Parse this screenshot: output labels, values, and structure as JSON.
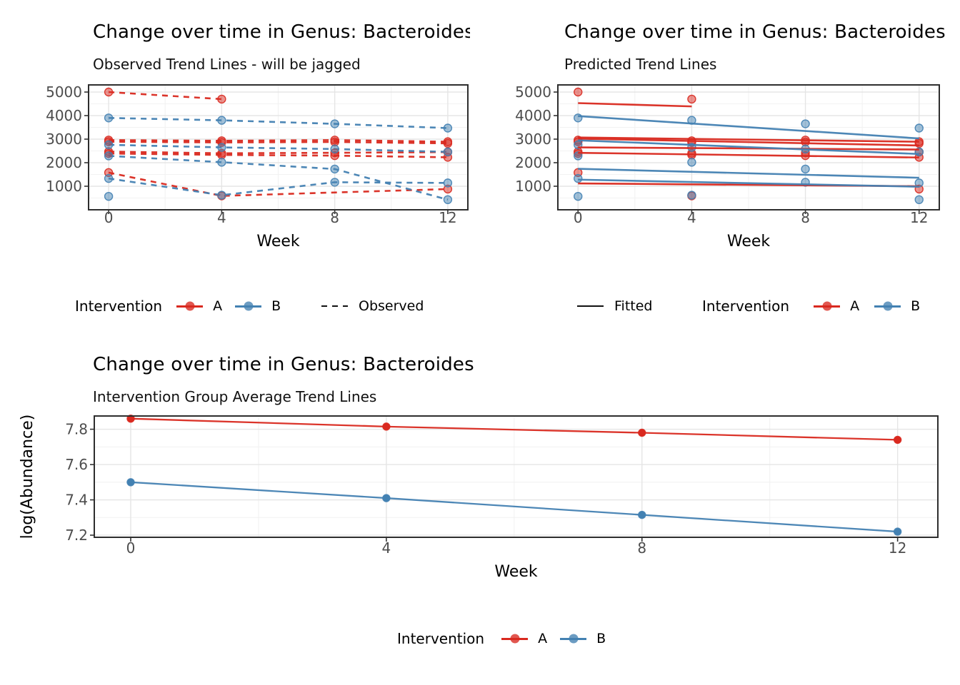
{
  "page": {
    "background": "#ffffff"
  },
  "colors": {
    "A": "#d9291f",
    "B": "#4381b2",
    "grid_major": "#e5e5e5",
    "grid_minor": "#f2f2f2",
    "panel_border": "#2e2e2e",
    "tick_mark": "#333333",
    "tick_label": "#4d4d4d",
    "axis_title": "#000000",
    "legend_key_line": "#111111"
  },
  "chart_data": [
    {
      "id": "observed",
      "type": "line",
      "title": "Change over time in Genus: Bacteroides",
      "subtitle": "Observed Trend Lines - will be jagged",
      "xlabel": "Week",
      "ylabel": "",
      "x_ticks": [
        0,
        4,
        8,
        12
      ],
      "y_ticks": [
        1000,
        2000,
        3000,
        4000,
        5000
      ],
      "xlim": [
        -0.71,
        12.71
      ],
      "ylim": [
        0,
        5303
      ],
      "grid": true,
      "legend_position": "bottom",
      "layers": [
        {
          "line": "dashed",
          "points": true,
          "series": [
            {
              "group": "A",
              "x": [
                0,
                4
              ],
              "y": [
                5000,
                4700
              ]
            },
            {
              "group": "A",
              "x": [
                0,
                4,
                8,
                12
              ],
              "y": [
                2960,
                2930,
                2960,
                2890
              ]
            },
            {
              "group": "A",
              "x": [
                0,
                4,
                8,
                12
              ],
              "y": [
                2890,
                2860,
                2880,
                2820
              ]
            },
            {
              "group": "A",
              "x": [
                0,
                4,
                8,
                12
              ],
              "y": [
                2470,
                2400,
                2420,
                2450
              ]
            },
            {
              "group": "A",
              "x": [
                0,
                4,
                8,
                12
              ],
              "y": [
                2390,
                2330,
                2300,
                2230
              ]
            },
            {
              "group": "A",
              "x": [
                0,
                4,
                12
              ],
              "y": [
                1580,
                590,
                880
              ]
            },
            {
              "group": "B",
              "x": [
                0,
                4,
                8,
                12
              ],
              "y": [
                3900,
                3800,
                3650,
                3470
              ]
            },
            {
              "group": "B",
              "x": [
                0,
                4,
                8,
                12
              ],
              "y": [
                2760,
                2650,
                2580,
                2460
              ]
            },
            {
              "group": "B",
              "x": [
                0,
                4,
                8,
                12
              ],
              "y": [
                2290,
                2020,
                1730,
                430
              ]
            },
            {
              "group": "B",
              "x": [
                0,
                4,
                8,
                12
              ],
              "y": [
                1330,
                620,
                1170,
                1140
              ]
            },
            {
              "group": "B",
              "x": [
                0
              ],
              "y": [
                570
              ]
            }
          ]
        }
      ]
    },
    {
      "id": "predicted",
      "type": "scatter+line",
      "title": "Change over time in Genus: Bacteroides",
      "subtitle": "Predicted Trend Lines",
      "xlabel": "Week",
      "ylabel": "",
      "x_ticks": [
        0,
        4,
        8,
        12
      ],
      "y_ticks": [
        1000,
        2000,
        3000,
        4000,
        5000
      ],
      "xlim": [
        -0.71,
        12.71
      ],
      "ylim": [
        0,
        5303
      ],
      "grid": true,
      "legend_position": "bottom",
      "layers": [
        {
          "line": "none",
          "points": true,
          "series": [
            {
              "group": "A",
              "x": [
                0,
                4
              ],
              "y": [
                5000,
                4700
              ]
            },
            {
              "group": "A",
              "x": [
                0,
                4,
                8,
                12
              ],
              "y": [
                2960,
                2930,
                2960,
                2890
              ]
            },
            {
              "group": "A",
              "x": [
                0,
                4,
                8,
                12
              ],
              "y": [
                2890,
                2860,
                2880,
                2820
              ]
            },
            {
              "group": "A",
              "x": [
                0,
                4,
                8,
                12
              ],
              "y": [
                2470,
                2400,
                2420,
                2450
              ]
            },
            {
              "group": "A",
              "x": [
                0,
                4,
                8,
                12
              ],
              "y": [
                2390,
                2330,
                2300,
                2230
              ]
            },
            {
              "group": "A",
              "x": [
                0,
                4,
                12
              ],
              "y": [
                1580,
                590,
                880
              ]
            },
            {
              "group": "B",
              "x": [
                0,
                4,
                8,
                12
              ],
              "y": [
                3900,
                3800,
                3650,
                3470
              ]
            },
            {
              "group": "B",
              "x": [
                0,
                4,
                8,
                12
              ],
              "y": [
                2760,
                2650,
                2580,
                2460
              ]
            },
            {
              "group": "B",
              "x": [
                0,
                4,
                8,
                12
              ],
              "y": [
                2290,
                2020,
                1730,
                430
              ]
            },
            {
              "group": "B",
              "x": [
                0,
                4,
                8,
                12
              ],
              "y": [
                1330,
                620,
                1170,
                1140
              ]
            },
            {
              "group": "B",
              "x": [
                0
              ],
              "y": [
                570
              ]
            }
          ]
        },
        {
          "line": "solid",
          "points": false,
          "series": [
            {
              "group": "A",
              "x": [
                0,
                4
              ],
              "y": [
                4530,
                4390
              ]
            },
            {
              "group": "A",
              "x": [
                0,
                12
              ],
              "y": [
                3070,
                2890
              ]
            },
            {
              "group": "A",
              "x": [
                0,
                12
              ],
              "y": [
                3020,
                2730
              ]
            },
            {
              "group": "A",
              "x": [
                0,
                12
              ],
              "y": [
                2650,
                2560
              ]
            },
            {
              "group": "A",
              "x": [
                0,
                12
              ],
              "y": [
                2420,
                2220
              ]
            },
            {
              "group": "A",
              "x": [
                0,
                12
              ],
              "y": [
                1120,
                1000
              ]
            },
            {
              "group": "B",
              "x": [
                0,
                12
              ],
              "y": [
                3980,
                3030
              ]
            },
            {
              "group": "B",
              "x": [
                0,
                12
              ],
              "y": [
                2950,
                2370
              ]
            },
            {
              "group": "B",
              "x": [
                0,
                12
              ],
              "y": [
                1740,
                1360
              ]
            },
            {
              "group": "B",
              "x": [
                0,
                12
              ],
              "y": [
                1280,
                980
              ]
            }
          ]
        }
      ]
    },
    {
      "id": "average",
      "type": "line",
      "title": "Change over time in Genus: Bacteroides",
      "subtitle": "Intervention Group Average Trend Lines",
      "xlabel": "Week",
      "ylabel": "log(Abundance)",
      "x_ticks": [
        0,
        4,
        8,
        12
      ],
      "y_ticks": [
        7.2,
        7.4,
        7.6,
        7.8
      ],
      "xlim": [
        -0.57,
        12.63
      ],
      "ylim": [
        7.188,
        7.875
      ],
      "grid": true,
      "legend_position": "bottom",
      "layers": [
        {
          "line": "solid",
          "points": true,
          "series": [
            {
              "group": "A",
              "x": [
                0,
                4,
                8,
                12
              ],
              "y": [
                7.86,
                7.815,
                7.78,
                7.74
              ]
            },
            {
              "group": "B",
              "x": [
                0,
                4,
                8,
                12
              ],
              "y": [
                7.5,
                7.41,
                7.315,
                7.22
              ]
            }
          ]
        }
      ]
    }
  ],
  "legends": {
    "observed_chart": {
      "title": "Intervention",
      "a_label": "A",
      "b_label": "B",
      "line_label": "Observed"
    },
    "fitted_chart": {
      "line_label": "Fitted",
      "title": "Intervention",
      "a_label": "A",
      "b_label": "B"
    },
    "average_chart": {
      "title": "Intervention",
      "a_label": "A",
      "b_label": "B"
    }
  }
}
